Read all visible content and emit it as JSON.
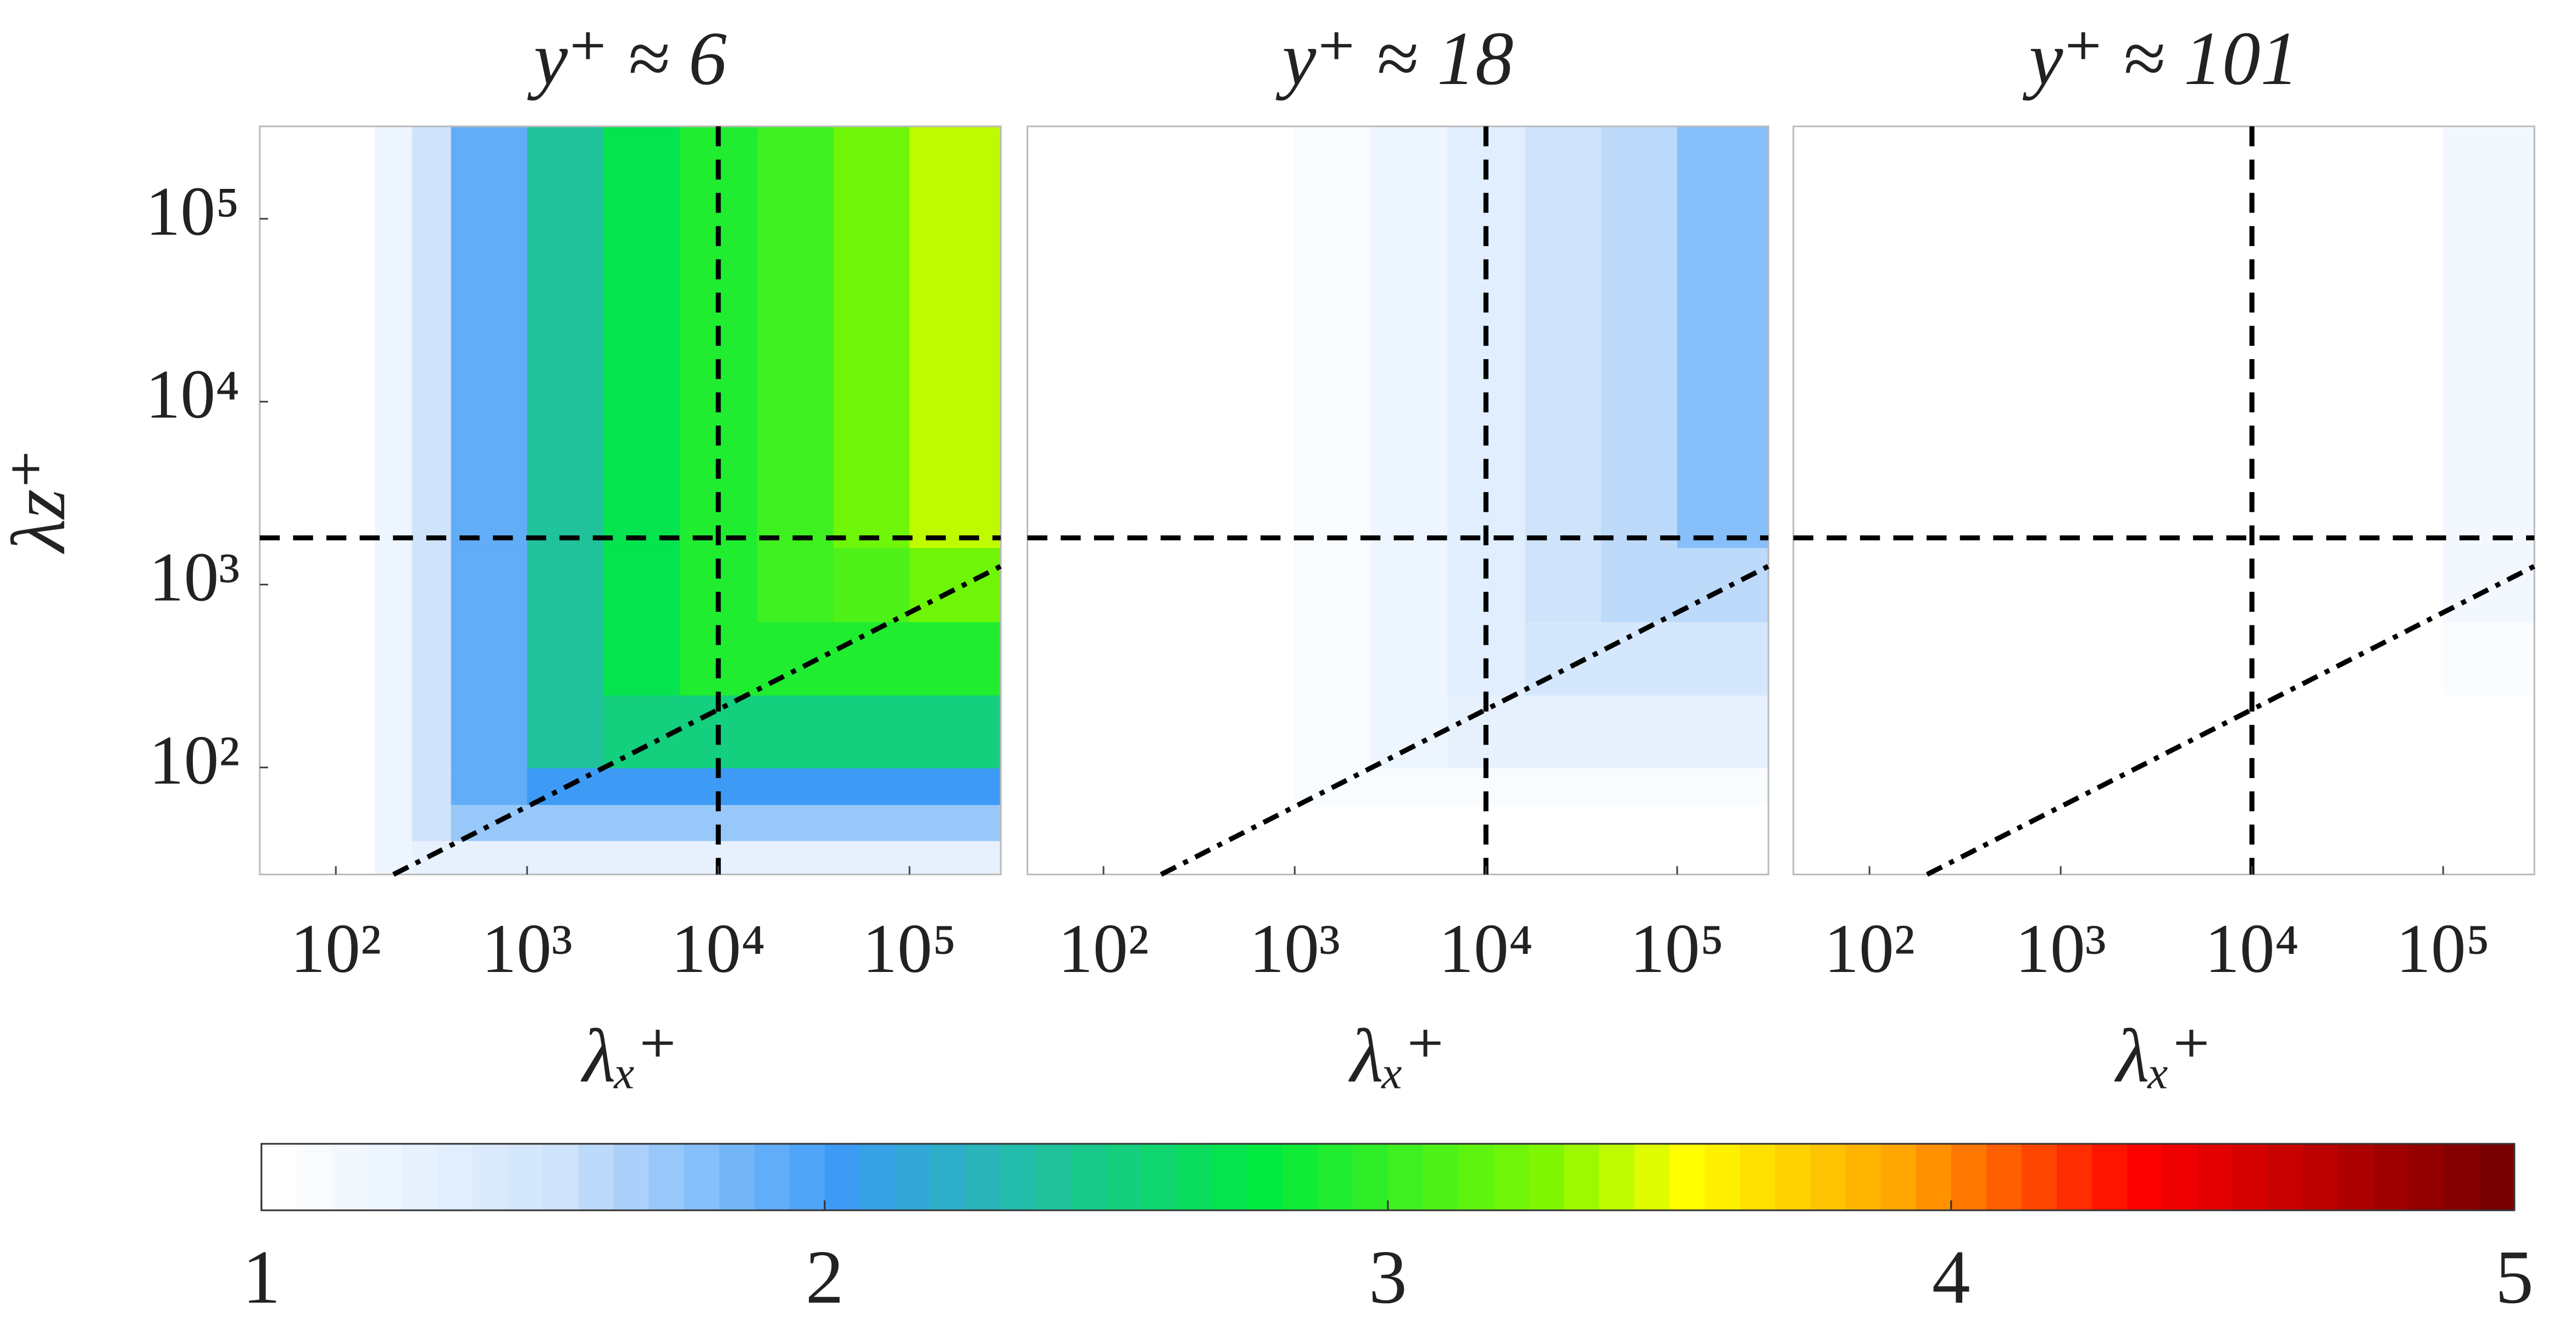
{
  "chart_data": [
    {
      "type": "heatmap",
      "title": "y⁺ ≈ 6",
      "x_label": "λₓ⁺",
      "y_label": "λz⁺",
      "xlim": [
        40,
        300000
      ],
      "ylim": [
        26,
        320000
      ],
      "xticks": [
        {
          "value": 100,
          "label": "10²"
        },
        {
          "value": 1000,
          "label": "10³"
        },
        {
          "value": 10000,
          "label": "10⁴"
        },
        {
          "value": 100000,
          "label": "10⁵"
        }
      ],
      "yticks": [
        {
          "value": 100,
          "label": "10²"
        },
        {
          "value": 1000,
          "label": "10³"
        },
        {
          "value": 10000,
          "label": "10⁴"
        },
        {
          "value": 100000,
          "label": "10⁵"
        }
      ],
      "x_edges": [
        40,
        160,
        250,
        400,
        1000,
        2500,
        6300,
        16000,
        40000,
        100000,
        300000
      ],
      "y_edges": [
        26,
        40,
        63,
        100,
        250,
        630,
        1600,
        320000
      ],
      "z": [
        [
          1,
          1.2,
          1.3,
          1.3,
          1.3,
          1.3,
          1.3,
          1.3,
          1.3,
          1.3
        ],
        [
          1,
          1.2,
          1.5,
          1.7,
          1.7,
          1.7,
          1.7,
          1.7,
          1.7,
          1.7
        ],
        [
          1,
          1.2,
          1.5,
          1.9,
          2.0,
          2.0,
          2.0,
          2.0,
          2.0,
          2.0
        ],
        [
          1,
          1.2,
          1.5,
          1.9,
          2.4,
          2.5,
          2.5,
          2.5,
          2.5,
          2.5
        ],
        [
          1,
          1.2,
          1.5,
          1.9,
          2.4,
          2.7,
          2.9,
          2.9,
          2.9,
          2.9
        ],
        [
          1,
          1.2,
          1.5,
          1.9,
          2.4,
          2.7,
          2.9,
          3.0,
          3.1,
          3.2
        ],
        [
          1,
          1.2,
          1.5,
          1.9,
          2.4,
          2.7,
          2.9,
          3.0,
          3.2,
          3.4
        ]
      ],
      "vline": 10000,
      "hline": 1800,
      "diag": {
        "x": [
          200,
          300000
        ],
        "y": [
          26,
          1260
        ]
      }
    },
    {
      "type": "heatmap",
      "title": "y⁺ ≈ 18",
      "x_label": "λₓ⁺",
      "xlim": [
        40,
        300000
      ],
      "ylim": [
        26,
        320000
      ],
      "xticks": [
        {
          "value": 100,
          "label": "10²"
        },
        {
          "value": 1000,
          "label": "10³"
        },
        {
          "value": 10000,
          "label": "10⁴"
        },
        {
          "value": 100000,
          "label": "10⁵"
        }
      ],
      "x_edges": [
        40,
        160,
        250,
        400,
        1000,
        2500,
        6300,
        16000,
        40000,
        100000,
        300000
      ],
      "y_edges": [
        26,
        40,
        63,
        100,
        250,
        630,
        1600,
        320000
      ],
      "z": [
        [
          1,
          1,
          1,
          1,
          1,
          1,
          1,
          1,
          1,
          1
        ],
        [
          1,
          1,
          1,
          1,
          1,
          1,
          1,
          1,
          1,
          1
        ],
        [
          1,
          1,
          1,
          1,
          1.1,
          1.1,
          1.1,
          1.1,
          1.1,
          1.1
        ],
        [
          1,
          1,
          1,
          1,
          1.1,
          1.2,
          1.3,
          1.3,
          1.3,
          1.3
        ],
        [
          1,
          1,
          1,
          1,
          1.1,
          1.2,
          1.35,
          1.45,
          1.45,
          1.45
        ],
        [
          1,
          1,
          1,
          1,
          1.1,
          1.2,
          1.35,
          1.5,
          1.6,
          1.6
        ],
        [
          1,
          1,
          1,
          1,
          1.1,
          1.2,
          1.35,
          1.5,
          1.6,
          1.75
        ]
      ],
      "vline": 10000,
      "hline": 1800,
      "diag": {
        "x": [
          200,
          300000
        ],
        "y": [
          26,
          1260
        ]
      }
    },
    {
      "type": "heatmap",
      "title": "y⁺ ≈ 101",
      "x_label": "λₓ⁺",
      "xlim": [
        40,
        300000
      ],
      "ylim": [
        26,
        320000
      ],
      "xticks": [
        {
          "value": 100,
          "label": "10²"
        },
        {
          "value": 1000,
          "label": "10³"
        },
        {
          "value": 10000,
          "label": "10⁴"
        },
        {
          "value": 100000,
          "label": "10⁵"
        }
      ],
      "x_edges": [
        40,
        160,
        250,
        400,
        1000,
        2500,
        6300,
        16000,
        40000,
        100000,
        300000
      ],
      "y_edges": [
        26,
        40,
        63,
        100,
        250,
        630,
        1600,
        320000
      ],
      "z": [
        [
          1,
          1,
          1,
          1,
          1,
          1,
          1,
          1,
          1,
          1
        ],
        [
          1,
          1,
          1,
          1,
          1,
          1,
          1,
          1,
          1,
          1
        ],
        [
          1,
          1,
          1,
          1,
          1,
          1,
          1,
          1,
          1,
          1
        ],
        [
          1,
          1,
          1,
          1,
          1,
          1,
          1,
          1,
          1,
          1
        ],
        [
          1,
          1,
          1,
          1,
          1,
          1,
          1,
          1,
          1,
          1.1
        ],
        [
          1,
          1,
          1,
          1,
          1,
          1,
          1,
          1,
          1,
          1.15
        ],
        [
          1,
          1,
          1,
          1,
          1,
          1,
          1,
          1,
          1,
          1.15
        ]
      ],
      "vline": 10000,
      "hline": 1800,
      "diag": {
        "x": [
          200,
          300000
        ],
        "y": [
          26,
          1260
        ]
      }
    },
    {
      "type": "colorbar",
      "clim": [
        1,
        5
      ],
      "ticks": [
        1,
        2,
        3,
        4,
        5
      ],
      "levels": 64,
      "stops": [
        1,
        1.5,
        2,
        2.75,
        3.25,
        3.5,
        3.9,
        4.3,
        5
      ],
      "colors": [
        "#ffffff",
        "#cfe3fb",
        "#3d9bf6",
        "#00e940",
        "#7ef700",
        "#ffff00",
        "#ffa000",
        "#ff0000",
        "#6b0000"
      ]
    }
  ]
}
